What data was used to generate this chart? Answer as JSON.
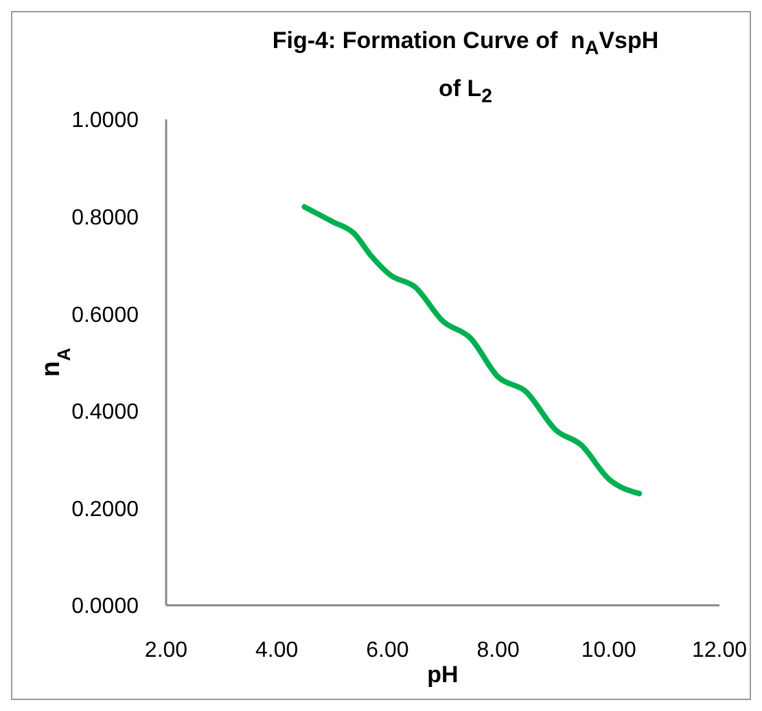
{
  "chart_data": {
    "type": "line",
    "title": "Fig-4: Formation Curve of  n$_{A}$VspH of L$_{2}$",
    "xlabel": "pH",
    "ylabel": "n$_{A}$",
    "x": [
      4.5,
      5.0,
      5.4,
      5.7,
      6.05,
      6.5,
      7.0,
      7.5,
      8.0,
      8.5,
      9.05,
      9.5,
      10.0,
      10.55
    ],
    "series": [
      {
        "color": "#00b050",
        "values": [
          0.82,
          0.79,
          0.765,
          0.72,
          0.68,
          0.655,
          0.585,
          0.55,
          0.47,
          0.44,
          0.36,
          0.33,
          0.26,
          0.23
        ]
      }
    ],
    "xlim": [
      2,
      12
    ],
    "ylim": [
      0,
      1
    ],
    "xticks": [
      {
        "value": 2,
        "label": "2.00"
      },
      {
        "value": 4,
        "label": "4.00"
      },
      {
        "value": 6,
        "label": "6.00"
      },
      {
        "value": 8,
        "label": "8.00"
      },
      {
        "value": 10,
        "label": "10.00"
      },
      {
        "value": 12,
        "label": "12.00"
      }
    ],
    "yticks": [
      {
        "value": 0,
        "label": "0.0000"
      },
      {
        "value": 0.2,
        "label": "0.2000"
      },
      {
        "value": 0.4,
        "label": "0.4000"
      },
      {
        "value": 0.6,
        "label": "0.6000"
      },
      {
        "value": 0.8,
        "label": "0.8000"
      },
      {
        "value": 1,
        "label": "1.0000"
      }
    ],
    "grid": false,
    "legend": false,
    "marker": "none",
    "line_style": "solid"
  }
}
